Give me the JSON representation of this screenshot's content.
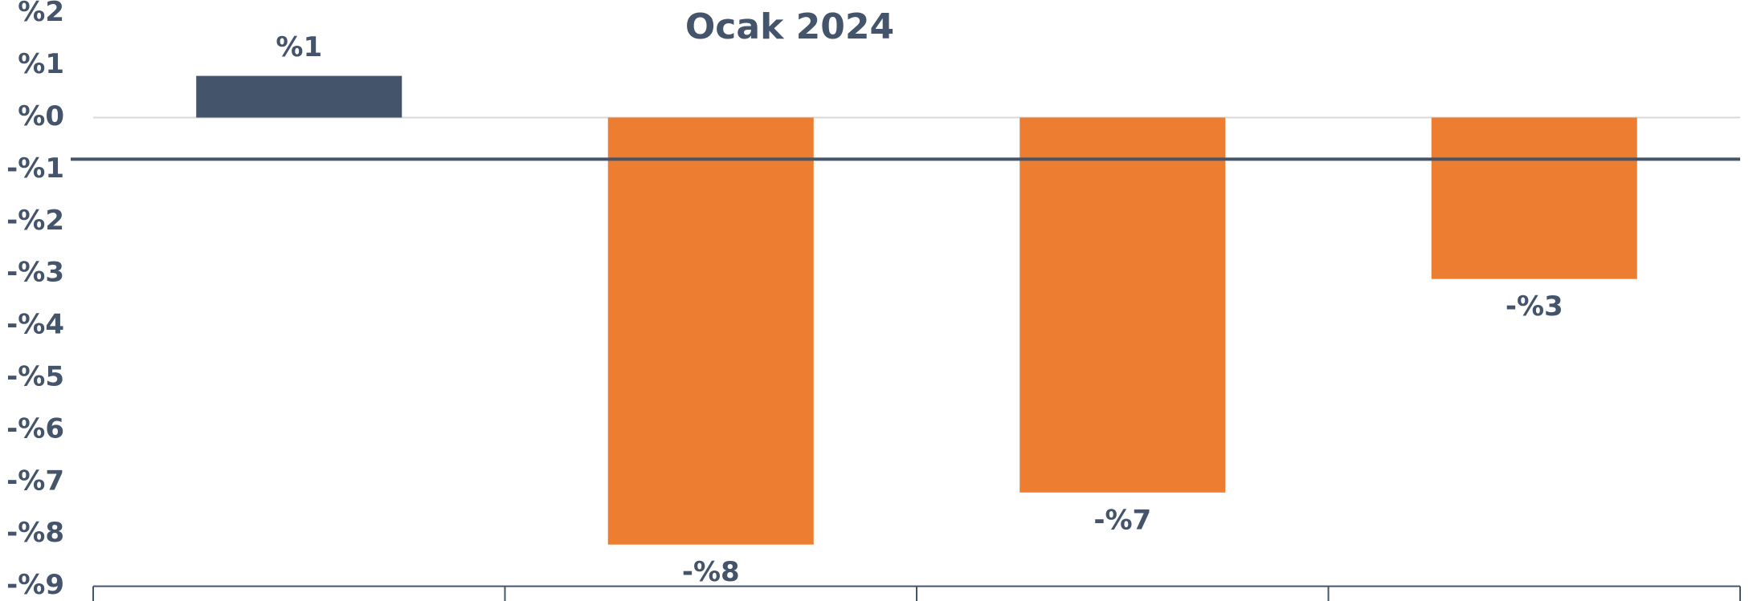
{
  "chart_data": {
    "type": "bar",
    "title": "Ocak 2024",
    "categories": [
      null,
      null,
      null,
      null
    ],
    "values": [
      0.8,
      -8.2,
      -7.2,
      -3.1
    ],
    "value_labels": [
      "%1",
      "-%8",
      "-%7",
      "-%3"
    ],
    "colors": [
      "#44546a",
      "#ed7d31",
      "#ed7d31",
      "#ed7d31"
    ],
    "reference_line": {
      "value": -0.8,
      "color": "#44546a"
    },
    "ylim": [
      -9,
      2
    ],
    "yticks": [
      {
        "value": 2,
        "label": "%2"
      },
      {
        "value": 1,
        "label": "%1"
      },
      {
        "value": 0,
        "label": "%0"
      },
      {
        "value": -1,
        "label": "-%1"
      },
      {
        "value": -2,
        "label": "-%2"
      },
      {
        "value": -3,
        "label": "-%3"
      },
      {
        "value": -4,
        "label": "-%4"
      },
      {
        "value": -5,
        "label": "-%5"
      },
      {
        "value": -6,
        "label": "-%6"
      },
      {
        "value": -7,
        "label": "-%7"
      },
      {
        "value": -8,
        "label": "-%8"
      },
      {
        "value": -9,
        "label": "-%9"
      }
    ]
  }
}
